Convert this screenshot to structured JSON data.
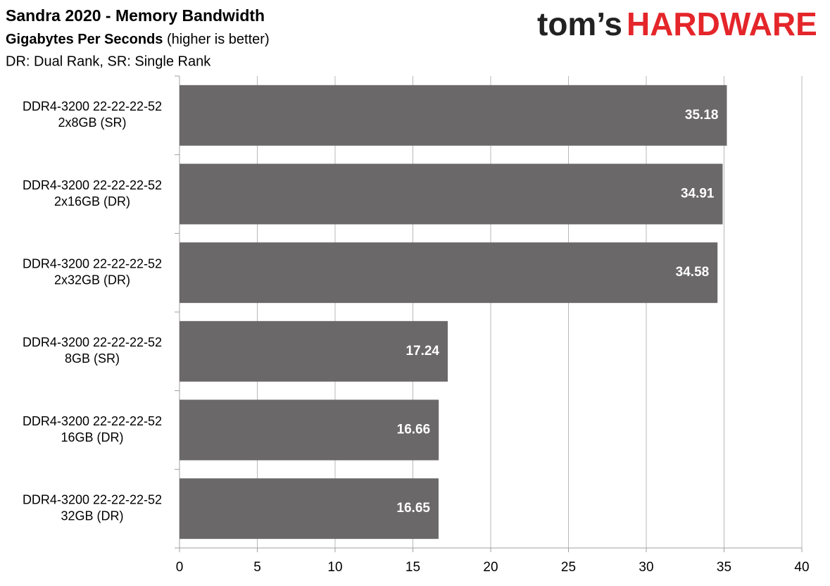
{
  "chart_data": {
    "type": "bar",
    "orientation": "horizontal",
    "title": "Sandra 2020 - Memory Bandwidth",
    "subtitle": [
      "Gigabytes Per Seconds",
      "(higher is better)"
    ],
    "note": "DR: Dual Rank, SR: Single Rank",
    "logo": [
      "tom’s",
      "HARDWARE"
    ],
    "categories": [
      [
        "DDR4-3200 22-22-22-52",
        "2x8GB (SR)"
      ],
      [
        "DDR4-3200 22-22-22-52",
        "2x16GB (DR)"
      ],
      [
        "DDR4-3200 22-22-22-52",
        "2x32GB (DR)"
      ],
      [
        "DDR4-3200 22-22-22-52",
        "8GB (SR)"
      ],
      [
        "DDR4-3200 22-22-22-52",
        "16GB (DR)"
      ],
      [
        "DDR4-3200 22-22-22-52",
        "32GB (DR)"
      ]
    ],
    "values": [
      35.18,
      34.91,
      34.58,
      17.24,
      16.66,
      16.65
    ],
    "color": "#6a6868",
    "xlim": [
      0,
      40
    ],
    "xticks": [
      0,
      5,
      10,
      15,
      20,
      25,
      30,
      35,
      40
    ],
    "grid": true
  }
}
